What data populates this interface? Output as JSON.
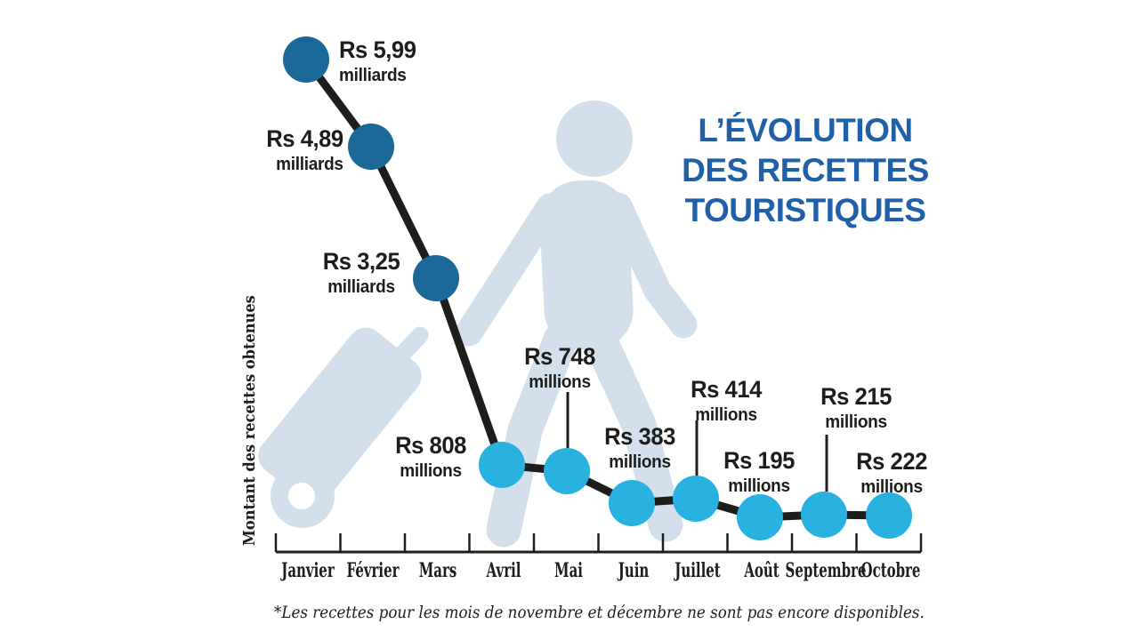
{
  "header": {
    "lines": [
      "L’ÉVOLUTION",
      "DES RECETTES",
      "TOURISTIQUES"
    ]
  },
  "colors": {
    "title": "#2060A8",
    "dot_dark": "#1A6998",
    "dot_light": "#29B1E0",
    "line": "#1D1D1B",
    "silhouette": "#D3E0EC",
    "text": "#1D1D1B",
    "background": "#FFFFFF"
  },
  "chart_data": {
    "type": "line",
    "title": "L’évolution des recettes touristiques",
    "ylabel": "Montant des recettes obtenues",
    "footnote": "*Les recettes pour les mois de novembre et décembre ne sont pas encore disponibles.",
    "categories": [
      "Janvier",
      "Février",
      "Mars",
      "Avril",
      "Mai",
      "Juin",
      "Juillet",
      "Août",
      "Septembre",
      "Octobre"
    ],
    "values_rs_millions": [
      5990,
      4890,
      3250,
      808,
      748,
      383,
      414,
      195,
      215,
      222
    ],
    "point_labels": [
      {
        "line1": "Rs 5,99",
        "line2": "milliards"
      },
      {
        "line1": "Rs 4,89",
        "line2": "milliards"
      },
      {
        "line1": "Rs 3,25",
        "line2": "milliards"
      },
      {
        "line1": "Rs 808",
        "line2": "millions"
      },
      {
        "line1": "Rs 748",
        "line2": "millions"
      },
      {
        "line1": "Rs 383",
        "line2": "millions"
      },
      {
        "line1": "Rs 414",
        "line2": "millions"
      },
      {
        "line1": "Rs 195",
        "line2": "millions"
      },
      {
        "line1": "Rs 215",
        "line2": "millions"
      },
      {
        "line1": "Rs 222",
        "line2": "millions"
      }
    ],
    "series_color_note": {
      "janvier_to_mars": "dark blue dots",
      "avril_to_octobre": "light blue dots"
    },
    "legend": "none",
    "grid": "off"
  }
}
